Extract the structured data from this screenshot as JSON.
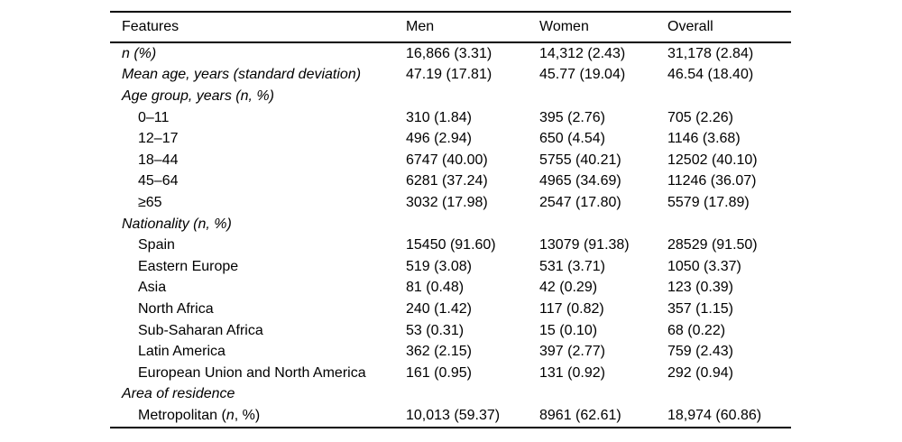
{
  "colors": {
    "background": "#ffffff",
    "text": "#000000",
    "rule": "#000000"
  },
  "table": {
    "columns": [
      "Features",
      "Men",
      "Women",
      "Overall"
    ],
    "rows": [
      {
        "label_pre": "n (%)",
        "italic": true,
        "indent": false,
        "values": [
          "16,866 (3.31)",
          "14,312 (2.43)",
          "31,178 (2.84)"
        ]
      },
      {
        "label_pre": "Mean age, years (standard deviation)",
        "italic": true,
        "indent": false,
        "values": [
          "47.19 (17.81)",
          "45.77 (19.04)",
          "46.54 (18.40)"
        ]
      },
      {
        "label_pre": "Age group, years (n, %)",
        "italic": true,
        "indent": false,
        "values": [
          "",
          "",
          ""
        ]
      },
      {
        "label_pre": "0–11",
        "italic": false,
        "indent": true,
        "values": [
          "310 (1.84)",
          "395 (2.76)",
          "705 (2.26)"
        ]
      },
      {
        "label_pre": "12–17",
        "italic": false,
        "indent": true,
        "values": [
          "496 (2.94)",
          "650 (4.54)",
          "1146 (3.68)"
        ]
      },
      {
        "label_pre": "18–44",
        "italic": false,
        "indent": true,
        "values": [
          "6747 (40.00)",
          "5755 (40.21)",
          "12502 (40.10)"
        ]
      },
      {
        "label_pre": "45–64",
        "italic": false,
        "indent": true,
        "values": [
          "6281 (37.24)",
          "4965 (34.69)",
          "11246 (36.07)"
        ]
      },
      {
        "label_pre": "≥65",
        "italic": false,
        "indent": true,
        "values": [
          "3032 (17.98)",
          "2547 (17.80)",
          "5579 (17.89)"
        ]
      },
      {
        "label_pre": "Nationality (n, %)",
        "italic": true,
        "indent": false,
        "values": [
          "",
          "",
          ""
        ]
      },
      {
        "label_pre": "Spain",
        "italic": false,
        "indent": true,
        "values": [
          "15450 (91.60)",
          "13079 (91.38)",
          "28529 (91.50)"
        ]
      },
      {
        "label_pre": "Eastern Europe",
        "italic": false,
        "indent": true,
        "values": [
          "519 (3.08)",
          "531 (3.71)",
          "1050 (3.37)"
        ]
      },
      {
        "label_pre": "Asia",
        "italic": false,
        "indent": true,
        "values": [
          "81 (0.48)",
          "42 (0.29)",
          "123 (0.39)"
        ]
      },
      {
        "label_pre": "North Africa",
        "italic": false,
        "indent": true,
        "values": [
          "240 (1.42)",
          "117 (0.82)",
          "357 (1.15)"
        ]
      },
      {
        "label_pre": "Sub-Saharan Africa",
        "italic": false,
        "indent": true,
        "values": [
          "53 (0.31)",
          "15 (0.10)",
          "68 (0.22)"
        ]
      },
      {
        "label_pre": "Latin America",
        "italic": false,
        "indent": true,
        "values": [
          "362 (2.15)",
          "397 (2.77)",
          "759 (2.43)"
        ]
      },
      {
        "label_pre": "European Union and North America",
        "italic": false,
        "indent": true,
        "values": [
          "161 (0.95)",
          "131 (0.92)",
          "292 (0.94)"
        ]
      },
      {
        "label_pre": "Area of residence",
        "italic": true,
        "indent": false,
        "values": [
          "",
          "",
          ""
        ]
      },
      {
        "label_pre": "Metropolitan (",
        "label_it": "n",
        "label_post": ", %)",
        "italic": false,
        "indent": true,
        "values": [
          "10,013 (59.37)",
          "8961 (62.61)",
          "18,974 (60.86)"
        ]
      }
    ]
  }
}
